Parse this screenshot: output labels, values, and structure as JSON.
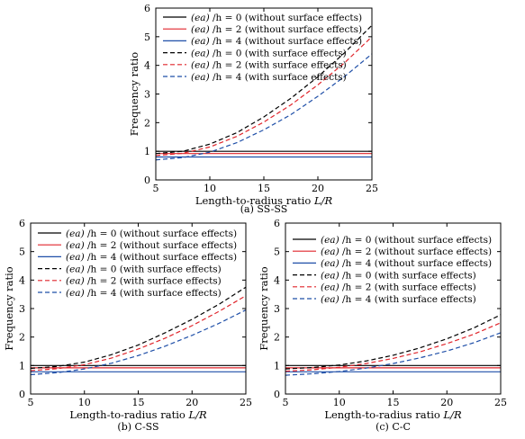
{
  "colors": {
    "black": "#000000",
    "red": "#e0252b",
    "blue": "#1f4fa8"
  },
  "legend_entries": [
    {
      "prefix": "(ea)",
      "rest": " /h = 0 (without surface effects)",
      "color": "#000000",
      "dashed": false
    },
    {
      "prefix": "(ea)",
      "rest": " /h = 2 (without surface effects)",
      "color": "#e0252b",
      "dashed": false
    },
    {
      "prefix": "(ea)",
      "rest": " /h = 4 (without surface effects)",
      "color": "#1f4fa8",
      "dashed": false
    },
    {
      "prefix": "(ea)",
      "rest": " /h = 0 (with surface effects)",
      "color": "#000000",
      "dashed": true
    },
    {
      "prefix": "(ea)",
      "rest": " /h = 2 (with surface effects)",
      "color": "#e0252b",
      "dashed": true
    },
    {
      "prefix": "(ea)",
      "rest": " /h = 4 (with surface effects)",
      "color": "#1f4fa8",
      "dashed": true
    }
  ],
  "chart_data": [
    {
      "type": "line",
      "caption": "(a) SS-SS",
      "xlabel_text": "Length-to-radius ratio ",
      "xlabel_italic": "L/R",
      "ylabel": "Frequency ratio",
      "xlim": [
        5,
        25
      ],
      "ylim": [
        0,
        6
      ],
      "xticks": [
        5,
        10,
        15,
        20,
        25
      ],
      "yticks": [
        0,
        1,
        2,
        3,
        4,
        5,
        6
      ],
      "legend": "top-left",
      "series": [
        {
          "name": "(ea)/h = 0 (without surface effects)",
          "color": "#000000",
          "dashed": false,
          "x": [
            5,
            25
          ],
          "y": [
            1.0,
            1.0
          ]
        },
        {
          "name": "(ea)/h = 2 (without surface effects)",
          "color": "#e0252b",
          "dashed": false,
          "x": [
            5,
            25
          ],
          "y": [
            0.92,
            0.92
          ]
        },
        {
          "name": "(ea)/h = 4 (without surface effects)",
          "color": "#1f4fa8",
          "dashed": false,
          "x": [
            5,
            25
          ],
          "y": [
            0.8,
            0.8
          ]
        },
        {
          "name": "(ea)/h = 0 (with surface effects)",
          "color": "#000000",
          "dashed": true,
          "x": [
            5,
            7.5,
            10,
            12.5,
            15,
            17.5,
            20,
            22.5,
            25
          ],
          "y": [
            0.92,
            1.0,
            1.25,
            1.65,
            2.2,
            2.85,
            3.6,
            4.45,
            5.4
          ]
        },
        {
          "name": "(ea)/h = 2 (with surface effects)",
          "color": "#e0252b",
          "dashed": true,
          "x": [
            5,
            7.5,
            10,
            12.5,
            15,
            17.5,
            20,
            22.5,
            25
          ],
          "y": [
            0.85,
            0.93,
            1.15,
            1.52,
            2.02,
            2.62,
            3.32,
            4.1,
            5.0
          ]
        },
        {
          "name": "(ea)/h = 4 (with surface effects)",
          "color": "#1f4fa8",
          "dashed": true,
          "x": [
            5,
            7.5,
            10,
            12.5,
            15,
            17.5,
            20,
            22.5,
            25
          ],
          "y": [
            0.7,
            0.78,
            0.97,
            1.3,
            1.75,
            2.28,
            2.92,
            3.62,
            4.4
          ]
        }
      ]
    },
    {
      "type": "line",
      "caption": "(b) C-SS",
      "xlabel_text": "Length-to-radius ratio ",
      "xlabel_italic": "L/R",
      "ylabel": "Frequency ratio",
      "xlim": [
        5,
        25
      ],
      "ylim": [
        0,
        6
      ],
      "xticks": [
        5,
        10,
        15,
        20,
        25
      ],
      "yticks": [
        0,
        1,
        2,
        3,
        4,
        5,
        6
      ],
      "legend": "top-left",
      "series": [
        {
          "name": "(ea)/h = 0 (without surface effects)",
          "color": "#000000",
          "dashed": false,
          "x": [
            5,
            25
          ],
          "y": [
            1.0,
            1.0
          ]
        },
        {
          "name": "(ea)/h = 2 (without surface effects)",
          "color": "#e0252b",
          "dashed": false,
          "x": [
            5,
            25
          ],
          "y": [
            0.92,
            0.92
          ]
        },
        {
          "name": "(ea)/h = 4 (without surface effects)",
          "color": "#1f4fa8",
          "dashed": false,
          "x": [
            5,
            25
          ],
          "y": [
            0.78,
            0.78
          ]
        },
        {
          "name": "(ea)/h = 0 (with surface effects)",
          "color": "#000000",
          "dashed": true,
          "x": [
            5,
            7.5,
            10,
            12.5,
            15,
            17.5,
            20,
            22.5,
            25
          ],
          "y": [
            0.9,
            0.97,
            1.12,
            1.38,
            1.72,
            2.15,
            2.62,
            3.15,
            3.75
          ]
        },
        {
          "name": "(ea)/h = 2 (with surface effects)",
          "color": "#e0252b",
          "dashed": true,
          "x": [
            5,
            7.5,
            10,
            12.5,
            15,
            17.5,
            20,
            22.5,
            25
          ],
          "y": [
            0.82,
            0.89,
            1.03,
            1.26,
            1.58,
            1.96,
            2.4,
            2.9,
            3.45
          ]
        },
        {
          "name": "(ea)/h = 4 (with surface effects)",
          "color": "#1f4fa8",
          "dashed": true,
          "x": [
            5,
            7.5,
            10,
            12.5,
            15,
            17.5,
            20,
            22.5,
            25
          ],
          "y": [
            0.68,
            0.75,
            0.88,
            1.08,
            1.35,
            1.68,
            2.06,
            2.48,
            2.95
          ]
        }
      ]
    },
    {
      "type": "line",
      "caption": "(c) C-C",
      "xlabel_text": "Length-to-radius ratio ",
      "xlabel_italic": "L/R",
      "ylabel": "Frequency ratio",
      "xlim": [
        5,
        25
      ],
      "ylim": [
        0,
        6
      ],
      "xticks": [
        5,
        10,
        15,
        20,
        25
      ],
      "yticks": [
        0,
        1,
        2,
        3,
        4,
        5,
        6
      ],
      "legend": "top-left",
      "series": [
        {
          "name": "(ea)/h = 0 (without surface effects)",
          "color": "#000000",
          "dashed": false,
          "x": [
            5,
            25
          ],
          "y": [
            1.0,
            1.0
          ]
        },
        {
          "name": "(ea)/h = 2 (without surface effects)",
          "color": "#e0252b",
          "dashed": false,
          "x": [
            5,
            25
          ],
          "y": [
            0.92,
            0.92
          ]
        },
        {
          "name": "(ea)/h = 4 (without surface effects)",
          "color": "#1f4fa8",
          "dashed": false,
          "x": [
            5,
            25
          ],
          "y": [
            0.78,
            0.78
          ]
        },
        {
          "name": "(ea)/h = 0 (with surface effects)",
          "color": "#000000",
          "dashed": true,
          "x": [
            5,
            7.5,
            10,
            12.5,
            15,
            17.5,
            20,
            22.5,
            25
          ],
          "y": [
            0.88,
            0.93,
            1.02,
            1.16,
            1.36,
            1.62,
            1.94,
            2.32,
            2.78
          ]
        },
        {
          "name": "(ea)/h = 2 (with surface effects)",
          "color": "#e0252b",
          "dashed": true,
          "x": [
            5,
            7.5,
            10,
            12.5,
            15,
            17.5,
            20,
            22.5,
            25
          ],
          "y": [
            0.8,
            0.85,
            0.94,
            1.07,
            1.25,
            1.48,
            1.77,
            2.1,
            2.5
          ]
        },
        {
          "name": "(ea)/h = 4 (with surface effects)",
          "color": "#1f4fa8",
          "dashed": true,
          "x": [
            5,
            7.5,
            10,
            12.5,
            15,
            17.5,
            20,
            22.5,
            25
          ],
          "y": [
            0.66,
            0.71,
            0.79,
            0.91,
            1.07,
            1.27,
            1.51,
            1.8,
            2.15
          ]
        }
      ]
    }
  ]
}
